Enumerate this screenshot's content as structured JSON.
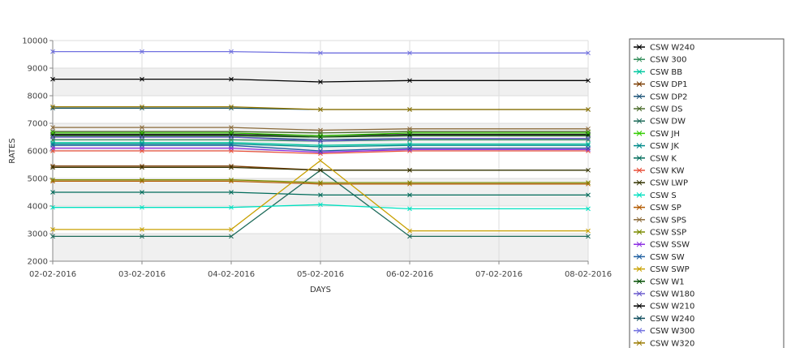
{
  "chart_data": {
    "type": "line",
    "xlabel": "DAYS",
    "ylabel": "RATES",
    "ylim": [
      2000,
      10000
    ],
    "y_ticks": [
      "2000",
      "3000",
      "4000",
      "5000",
      "6000",
      "7000",
      "8000",
      "9000",
      "10000"
    ],
    "categories": [
      "02-02-2016",
      "03-02-2016",
      "04-02-2016",
      "05-02-2016",
      "06-02-2016",
      "07-02-2016",
      "08-02-2016"
    ],
    "grid": "horizontal bands",
    "legend_position": "right",
    "series": [
      {
        "name": "CSW  W240",
        "color": "#000000",
        "values": [
          6600,
          6600,
          6600,
          6550,
          6600,
          null,
          6600
        ]
      },
      {
        "name": "CSW 300",
        "color": "#2e8b57",
        "values": [
          6400,
          6400,
          6400,
          6350,
          6400,
          null,
          6400
        ]
      },
      {
        "name": "CSW BB",
        "color": "#00c8a0",
        "values": [
          6300,
          6300,
          6300,
          6200,
          6250,
          null,
          6250
        ]
      },
      {
        "name": "CSW DP1",
        "color": "#7a3b00",
        "values": [
          5450,
          5450,
          5450,
          5300,
          5300,
          null,
          null
        ]
      },
      {
        "name": "CSW DP2",
        "color": "#1a5276",
        "values": [
          6500,
          6500,
          6500,
          6400,
          6450,
          null,
          6450
        ]
      },
      {
        "name": "CSW DS",
        "color": "#4a6b2a",
        "values": [
          6700,
          6700,
          6700,
          6650,
          6700,
          null,
          6700
        ]
      },
      {
        "name": "CSW DW",
        "color": "#1e6b5a",
        "values": [
          2900,
          2900,
          2900,
          5300,
          2900,
          null,
          2900
        ]
      },
      {
        "name": "CSW JH",
        "color": "#33cc00",
        "values": [
          6650,
          6650,
          6650,
          6550,
          6650,
          null,
          6650
        ]
      },
      {
        "name": "CSW JK",
        "color": "#008b8b",
        "values": [
          6250,
          6250,
          6250,
          6150,
          6200,
          null,
          6200
        ]
      },
      {
        "name": "CSW K",
        "color": "#006b5a",
        "values": [
          4500,
          4500,
          4500,
          4400,
          4400,
          null,
          4400
        ]
      },
      {
        "name": "CSW KW",
        "color": "#e8503a",
        "values": [
          6000,
          6000,
          6000,
          5900,
          6000,
          null,
          6000
        ]
      },
      {
        "name": "CSW LWP",
        "color": "#333300",
        "values": [
          5400,
          5400,
          5400,
          5300,
          5300,
          null,
          5300
        ]
      },
      {
        "name": "CSW S",
        "color": "#00e0c0",
        "values": [
          3950,
          3950,
          3950,
          4050,
          3900,
          null,
          3900
        ]
      },
      {
        "name": "CSW SP",
        "color": "#b35a00",
        "values": [
          4900,
          4900,
          4900,
          4800,
          4800,
          null,
          4800
        ]
      },
      {
        "name": "CSW SPS",
        "color": "#8b6b3a",
        "values": [
          6850,
          6850,
          6850,
          6750,
          6800,
          null,
          6800
        ]
      },
      {
        "name": "CSW SSP",
        "color": "#7a8b00",
        "values": [
          4950,
          4950,
          4950,
          4850,
          4850,
          null,
          4850
        ]
      },
      {
        "name": "CSW SSW",
        "color": "#8a2be2",
        "values": [
          6100,
          6100,
          6100,
          5950,
          6050,
          null,
          6050
        ]
      },
      {
        "name": "CSW SW",
        "color": "#1f5fa0",
        "values": [
          6200,
          6200,
          6200,
          6000,
          6100,
          null,
          6100
        ]
      },
      {
        "name": "CSW SWP",
        "color": "#c8a000",
        "values": [
          3150,
          3150,
          3150,
          5650,
          3100,
          null,
          3100
        ]
      },
      {
        "name": "CSW W1",
        "color": "#004d00",
        "values": [
          6550,
          6550,
          6550,
          6500,
          6550,
          null,
          6550
        ]
      },
      {
        "name": "CSW W180",
        "color": "#6a5acd",
        "values": [
          6500,
          6500,
          6500,
          6350,
          6450,
          null,
          6450
        ]
      },
      {
        "name": "CSW W210",
        "color": "#000000",
        "values": [
          8600,
          8600,
          8600,
          8500,
          8550,
          null,
          8550
        ]
      },
      {
        "name": "CSW W240",
        "color": "#0f4c5c",
        "values": [
          7550,
          7550,
          7550,
          7500,
          7500,
          null,
          7500
        ]
      },
      {
        "name": "CSW W300",
        "color": "#7070e0",
        "values": [
          9600,
          9600,
          9600,
          9550,
          9550,
          null,
          9550
        ]
      },
      {
        "name": "CSW W320",
        "color": "#9a7a00",
        "values": [
          7600,
          7600,
          7600,
          7500,
          7500,
          null,
          7500
        ]
      }
    ]
  }
}
